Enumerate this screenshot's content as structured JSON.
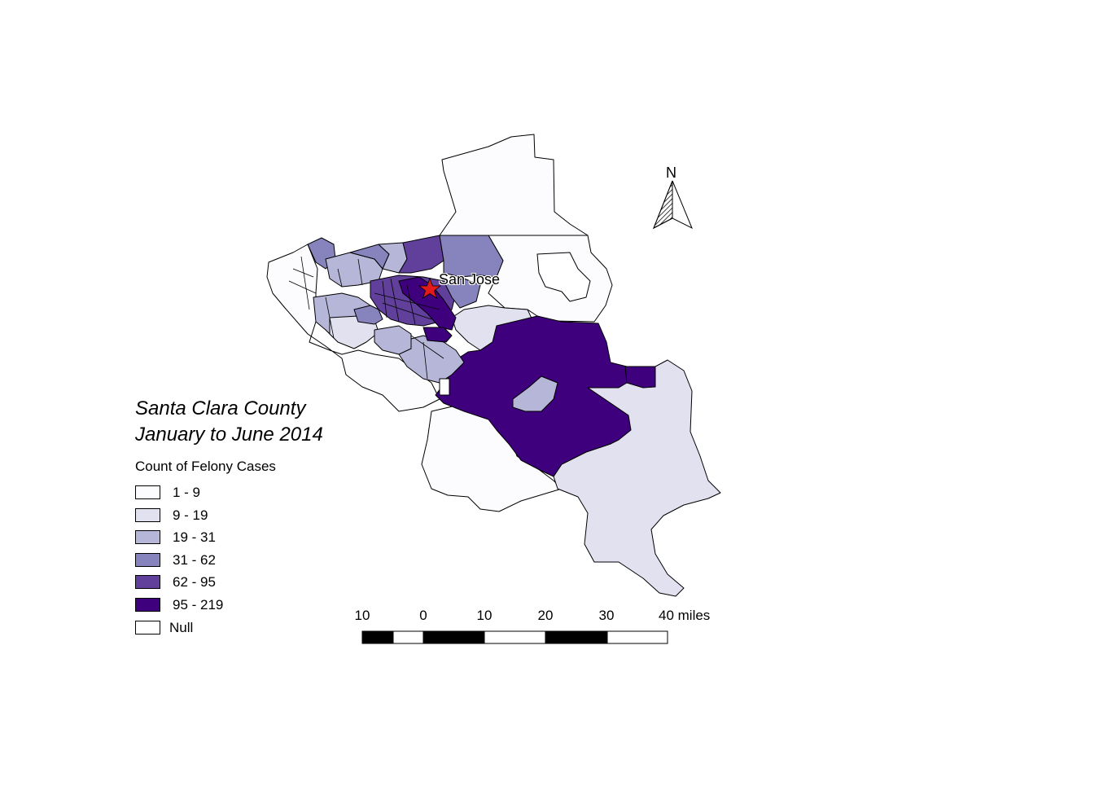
{
  "map": {
    "title_line1": "Santa Clara County",
    "title_line2": "January to June 2014",
    "city_label": "San Jose"
  },
  "legend": {
    "heading": "Count of Felony Cases",
    "classes": [
      {
        "label": "1 - 9",
        "color": "#fcfbfd"
      },
      {
        "label": "9 - 19",
        "color": "#e2e1ef"
      },
      {
        "label": "19 - 31",
        "color": "#b6b6d8"
      },
      {
        "label": "31 - 62",
        "color": "#8683bd"
      },
      {
        "label": "62 - 95",
        "color": "#61409b"
      },
      {
        "label": "95 - 219",
        "color": "#3f007d"
      },
      {
        "label": "Null",
        "color": "#ffffff"
      }
    ]
  },
  "scale_bar": {
    "ticks": [
      "10",
      "0",
      "10",
      "20",
      "30"
    ],
    "last_tick": "40 miles"
  },
  "north_arrow": {
    "label": "N",
    "icon": "north-arrow-icon"
  },
  "marker": {
    "icon": "star-icon",
    "color": "#e31a1c"
  }
}
